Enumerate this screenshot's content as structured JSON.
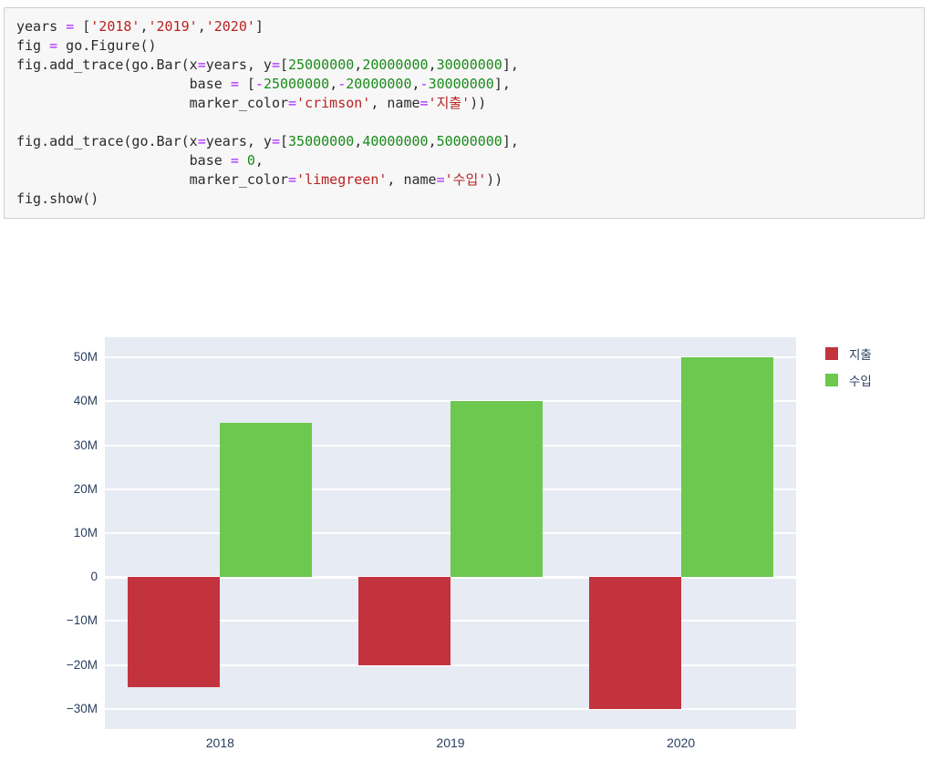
{
  "colors": {
    "code_bg": "#f7f7f7",
    "code_border": "#cfcfcf",
    "code_plain": "#2b2b2b",
    "code_operator": "#aa22ff",
    "code_number": "#1a8a1a",
    "code_string": "#ba2121",
    "plot_bg": "#e7ebf4",
    "grid": "#ffffff",
    "axis_text": "#2a3f5f",
    "expense_bar": "#c2333e",
    "income_bar": "#6cc84e"
  },
  "code_cell": {
    "lines": [
      [
        [
          "p",
          "years "
        ],
        [
          "o",
          "="
        ],
        [
          "p",
          " ["
        ],
        [
          "s",
          "'2018'"
        ],
        [
          "p",
          ","
        ],
        [
          "s",
          "'2019'"
        ],
        [
          "p",
          ","
        ],
        [
          "s",
          "'2020'"
        ],
        [
          "p",
          "]"
        ]
      ],
      [
        [
          "p",
          "fig "
        ],
        [
          "o",
          "="
        ],
        [
          "p",
          " go.Figure()"
        ]
      ],
      [
        [
          "p",
          "fig.add_trace(go.Bar(x"
        ],
        [
          "o",
          "="
        ],
        [
          "p",
          "years, y"
        ],
        [
          "o",
          "="
        ],
        [
          "p",
          "["
        ],
        [
          "n",
          "25000000"
        ],
        [
          "p",
          ","
        ],
        [
          "n",
          "20000000"
        ],
        [
          "p",
          ","
        ],
        [
          "n",
          "30000000"
        ],
        [
          "p",
          "],"
        ]
      ],
      [
        [
          "p",
          "                     base "
        ],
        [
          "o",
          "="
        ],
        [
          "p",
          " ["
        ],
        [
          "o",
          "-"
        ],
        [
          "n",
          "25000000"
        ],
        [
          "p",
          ","
        ],
        [
          "o",
          "-"
        ],
        [
          "n",
          "20000000"
        ],
        [
          "p",
          ","
        ],
        [
          "o",
          "-"
        ],
        [
          "n",
          "30000000"
        ],
        [
          "p",
          "],"
        ]
      ],
      [
        [
          "p",
          "                     marker_color"
        ],
        [
          "o",
          "="
        ],
        [
          "s",
          "'crimson'"
        ],
        [
          "p",
          ", name"
        ],
        [
          "o",
          "="
        ],
        [
          "s",
          "'지출'"
        ],
        [
          "p",
          "))"
        ]
      ],
      [],
      [
        [
          "p",
          "fig.add_trace(go.Bar(x"
        ],
        [
          "o",
          "="
        ],
        [
          "p",
          "years, y"
        ],
        [
          "o",
          "="
        ],
        [
          "p",
          "["
        ],
        [
          "n",
          "35000000"
        ],
        [
          "p",
          ","
        ],
        [
          "n",
          "40000000"
        ],
        [
          "p",
          ","
        ],
        [
          "n",
          "50000000"
        ],
        [
          "p",
          "],"
        ]
      ],
      [
        [
          "p",
          "                     base "
        ],
        [
          "o",
          "="
        ],
        [
          "p",
          " "
        ],
        [
          "n",
          "0"
        ],
        [
          "p",
          ","
        ]
      ],
      [
        [
          "p",
          "                     marker_color"
        ],
        [
          "o",
          "="
        ],
        [
          "s",
          "'limegreen'"
        ],
        [
          "p",
          ", name"
        ],
        [
          "o",
          "="
        ],
        [
          "s",
          "'수입'"
        ],
        [
          "p",
          "))"
        ]
      ],
      [
        [
          "p",
          "fig.show()"
        ]
      ]
    ]
  },
  "chart_data": {
    "type": "bar",
    "title": "",
    "xlabel": "",
    "ylabel": "",
    "categories": [
      "2018",
      "2019",
      "2020"
    ],
    "series": [
      {
        "name": "지출",
        "color": "#c2333e",
        "y": [
          25000000,
          20000000,
          30000000
        ],
        "base": [
          -25000000,
          -20000000,
          -30000000
        ]
      },
      {
        "name": "수입",
        "color": "#6cc84e",
        "y": [
          35000000,
          40000000,
          50000000
        ],
        "base": [
          0,
          0,
          0
        ]
      }
    ],
    "yticks": [
      {
        "v": -30000000,
        "label": "−30M"
      },
      {
        "v": -20000000,
        "label": "−20M"
      },
      {
        "v": -10000000,
        "label": "−10M"
      },
      {
        "v": 0,
        "label": "0"
      },
      {
        "v": 10000000,
        "label": "10M"
      },
      {
        "v": 20000000,
        "label": "20M"
      },
      {
        "v": 30000000,
        "label": "30M"
      },
      {
        "v": 40000000,
        "label": "40M"
      },
      {
        "v": 50000000,
        "label": "50M"
      }
    ],
    "ylim": [
      -34600000,
      54600000
    ],
    "grid": true,
    "legend_position": "top-right-outside",
    "bargap": 0.2,
    "bargroupgap": 0
  }
}
